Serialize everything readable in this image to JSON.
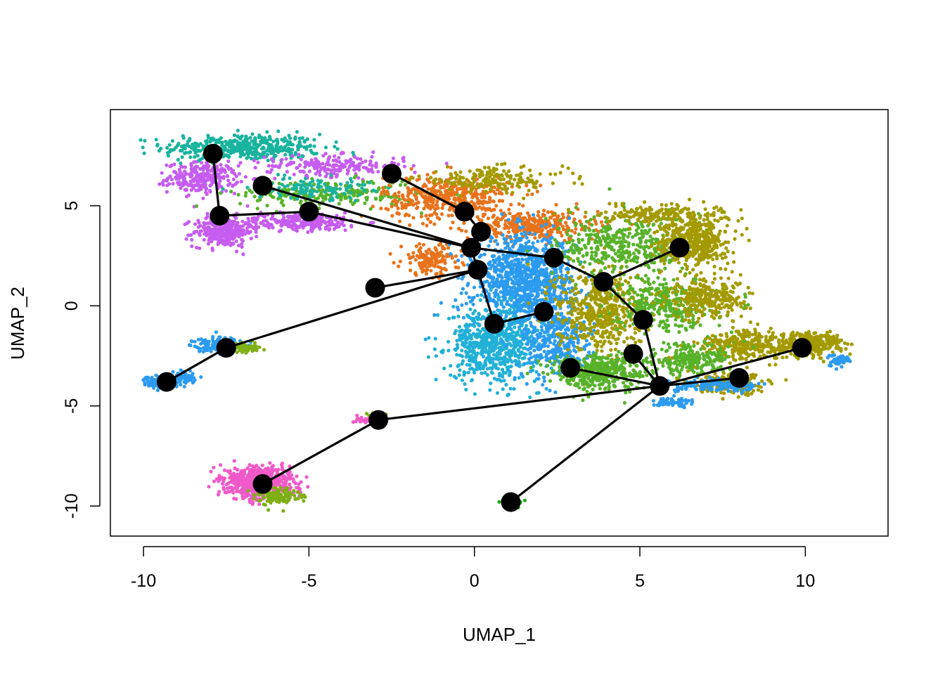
{
  "chart_data": {
    "type": "scatter",
    "title": "",
    "xlabel": "UMAP_1",
    "ylabel": "UMAP_2",
    "xlim": [
      -11,
      12.5
    ],
    "ylim": [
      -11.5,
      9.8
    ],
    "x_ticks": [
      -10,
      -5,
      0,
      5,
      10
    ],
    "y_ticks": [
      -10,
      -5,
      0,
      5
    ],
    "x_tick_labels": [
      "-10",
      "-5",
      "0",
      "5",
      "10"
    ],
    "y_tick_labels": [
      "-10",
      "-5",
      "0",
      "5"
    ],
    "grid": false,
    "legend": "none",
    "colors": {
      "orange": "#E8731C",
      "olive": "#A39A00",
      "green": "#57B22A",
      "darkgreen": "#1BAE1B",
      "teal": "#19B39E",
      "cyan": "#22B0D6",
      "blue": "#2C9BEF",
      "purple": "#C65CF0",
      "magenta": "#F05AC8",
      "olive2": "#7FAF16"
    },
    "cell_clusters": [
      {
        "color": "teal",
        "cx": -7.0,
        "cy": 7.9,
        "sx": 1.6,
        "sy": 0.45,
        "n": 420
      },
      {
        "color": "purple",
        "cx": -8.2,
        "cy": 6.4,
        "sx": 0.7,
        "sy": 0.5,
        "n": 260
      },
      {
        "color": "purple",
        "cx": -7.6,
        "cy": 3.7,
        "sx": 0.6,
        "sy": 0.5,
        "n": 260
      },
      {
        "color": "purple",
        "cx": -5.3,
        "cy": 4.2,
        "sx": 1.3,
        "sy": 0.3,
        "n": 260
      },
      {
        "color": "purple",
        "cx": -4.2,
        "cy": 7.0,
        "sx": 1.4,
        "sy": 0.35,
        "n": 200
      },
      {
        "color": "green",
        "cx": -4.4,
        "cy": 5.6,
        "sx": 1.8,
        "sy": 0.45,
        "n": 240
      },
      {
        "color": "teal",
        "cx": -4.9,
        "cy": 5.9,
        "sx": 1.2,
        "sy": 0.35,
        "n": 120
      },
      {
        "color": "orange",
        "cx": -0.8,
        "cy": 5.4,
        "sx": 1.3,
        "sy": 0.7,
        "n": 420
      },
      {
        "color": "orange",
        "cx": 1.8,
        "cy": 4.0,
        "sx": 1.3,
        "sy": 0.5,
        "n": 320
      },
      {
        "color": "orange",
        "cx": -1.3,
        "cy": 2.3,
        "sx": 0.6,
        "sy": 0.5,
        "n": 150
      },
      {
        "color": "olive",
        "cx": 0.5,
        "cy": 6.3,
        "sx": 1.5,
        "sy": 0.4,
        "n": 180
      },
      {
        "color": "blue",
        "cx": 1.5,
        "cy": 1.2,
        "sx": 1.0,
        "sy": 1.5,
        "n": 1050
      },
      {
        "color": "cyan",
        "cx": 0.6,
        "cy": -1.9,
        "sx": 0.9,
        "sy": 1.2,
        "n": 650
      },
      {
        "color": "blue",
        "cx": 2.5,
        "cy": -1.8,
        "sx": 0.7,
        "sy": 1.2,
        "n": 320
      },
      {
        "color": "olive",
        "cx": 3.8,
        "cy": -0.2,
        "sx": 0.9,
        "sy": 1.4,
        "n": 520
      },
      {
        "color": "green",
        "cx": 3.8,
        "cy": -3.3,
        "sx": 1.0,
        "sy": 0.6,
        "n": 420
      },
      {
        "color": "green",
        "cx": 4.5,
        "cy": 3.0,
        "sx": 1.3,
        "sy": 1.0,
        "n": 380
      },
      {
        "color": "green",
        "cx": 5.8,
        "cy": 0.1,
        "sx": 1.0,
        "sy": 0.9,
        "n": 320
      },
      {
        "color": "olive",
        "cx": 6.6,
        "cy": 3.2,
        "sx": 0.7,
        "sy": 0.8,
        "n": 480
      },
      {
        "color": "olive",
        "cx": 5.6,
        "cy": 4.6,
        "sx": 1.3,
        "sy": 0.3,
        "n": 180
      },
      {
        "color": "olive",
        "cx": 7.1,
        "cy": 0.4,
        "sx": 0.8,
        "sy": 0.7,
        "n": 280
      },
      {
        "color": "olive",
        "cx": 8.3,
        "cy": -2.0,
        "sx": 1.0,
        "sy": 0.5,
        "n": 300
      },
      {
        "color": "olive",
        "cx": 10.2,
        "cy": -1.9,
        "sx": 0.6,
        "sy": 0.4,
        "n": 260
      },
      {
        "color": "green",
        "cx": 6.5,
        "cy": -2.7,
        "sx": 0.8,
        "sy": 0.5,
        "n": 230
      },
      {
        "color": "olive",
        "cx": 7.8,
        "cy": -3.9,
        "sx": 0.7,
        "sy": 0.35,
        "n": 200
      },
      {
        "color": "blue",
        "cx": 7.4,
        "cy": -4.0,
        "sx": 0.9,
        "sy": 0.2,
        "n": 150
      },
      {
        "color": "blue",
        "cx": 6.0,
        "cy": -4.8,
        "sx": 0.4,
        "sy": 0.15,
        "n": 60
      },
      {
        "color": "blue",
        "cx": 11.0,
        "cy": -2.7,
        "sx": 0.25,
        "sy": 0.2,
        "n": 50
      },
      {
        "color": "blue",
        "cx": -7.8,
        "cy": -1.9,
        "sx": 0.5,
        "sy": 0.25,
        "n": 120
      },
      {
        "color": "olive2",
        "cx": -6.9,
        "cy": -2.1,
        "sx": 0.3,
        "sy": 0.15,
        "n": 60
      },
      {
        "color": "blue",
        "cx": -9.5,
        "cy": -3.8,
        "sx": 0.3,
        "sy": 0.2,
        "n": 140
      },
      {
        "color": "blue",
        "cx": -8.8,
        "cy": -3.6,
        "sx": 0.25,
        "sy": 0.25,
        "n": 60
      },
      {
        "color": "magenta",
        "cx": -6.5,
        "cy": -8.8,
        "sx": 0.65,
        "sy": 0.48,
        "n": 750
      },
      {
        "color": "olive2",
        "cx": -5.9,
        "cy": -9.5,
        "sx": 0.4,
        "sy": 0.25,
        "n": 120
      },
      {
        "color": "darkgreen",
        "cx": 1.15,
        "cy": -9.8,
        "sx": 0.18,
        "sy": 0.1,
        "n": 60
      },
      {
        "color": "magenta",
        "cx": -3.3,
        "cy": -5.7,
        "sx": 0.25,
        "sy": 0.1,
        "n": 25
      },
      {
        "color": "olive2",
        "cx": -3.0,
        "cy": -5.4,
        "sx": 0.2,
        "sy": 0.1,
        "n": 10
      }
    ],
    "nodes": [
      {
        "x": -7.9,
        "y": 7.6
      },
      {
        "x": -7.7,
        "y": 4.5
      },
      {
        "x": -5.0,
        "y": 4.7
      },
      {
        "x": -6.4,
        "y": 6.0
      },
      {
        "x": -2.5,
        "y": 6.6
      },
      {
        "x": -0.3,
        "y": 4.7
      },
      {
        "x": 0.2,
        "y": 3.7
      },
      {
        "x": -0.1,
        "y": 2.9
      },
      {
        "x": 0.1,
        "y": 1.8
      },
      {
        "x": -3.0,
        "y": 0.9
      },
      {
        "x": 0.6,
        "y": -0.9
      },
      {
        "x": 2.1,
        "y": -0.3
      },
      {
        "x": 2.4,
        "y": 2.4
      },
      {
        "x": 3.9,
        "y": 1.2
      },
      {
        "x": 6.2,
        "y": 2.9
      },
      {
        "x": 5.1,
        "y": -0.7
      },
      {
        "x": 4.8,
        "y": -2.4
      },
      {
        "x": 2.9,
        "y": -3.1
      },
      {
        "x": 5.6,
        "y": -4.0
      },
      {
        "x": 8.0,
        "y": -3.6
      },
      {
        "x": 9.9,
        "y": -2.1
      },
      {
        "x": -7.5,
        "y": -2.1
      },
      {
        "x": -9.3,
        "y": -3.8
      },
      {
        "x": -2.9,
        "y": -5.7
      },
      {
        "x": -6.4,
        "y": -8.9
      },
      {
        "x": 1.1,
        "y": -9.8
      }
    ],
    "edges": [
      [
        0,
        1
      ],
      [
        1,
        2
      ],
      [
        2,
        7
      ],
      [
        3,
        7
      ],
      [
        4,
        5
      ],
      [
        5,
        6
      ],
      [
        6,
        7
      ],
      [
        7,
        8
      ],
      [
        7,
        12
      ],
      [
        12,
        13
      ],
      [
        13,
        14
      ],
      [
        13,
        15
      ],
      [
        15,
        18
      ],
      [
        8,
        10
      ],
      [
        10,
        11
      ],
      [
        8,
        9
      ],
      [
        8,
        21
      ],
      [
        21,
        22
      ],
      [
        16,
        18
      ],
      [
        17,
        18
      ],
      [
        18,
        19
      ],
      [
        18,
        20
      ],
      [
        18,
        23
      ],
      [
        23,
        24
      ],
      [
        18,
        25
      ]
    ]
  }
}
